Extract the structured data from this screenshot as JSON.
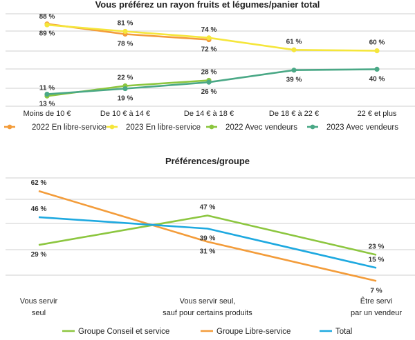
{
  "chart_data": [
    {
      "type": "line",
      "title": "Vous préférez un rayon fruits et légumes/panier total",
      "categories": [
        "Moins de 10 €",
        "De 10 € à 14 €",
        "De 14 € à 18 €",
        "De 18 € à 22 €",
        "22 € et plus"
      ],
      "ylim": [
        0,
        100
      ],
      "grid": true,
      "legend": "bottom",
      "series": [
        {
          "name": "2022 En libre-service",
          "color": "#f39c3a",
          "values": [
            89,
            78,
            72,
            null,
            null
          ],
          "labels": [
            "89 %",
            "78 %",
            "72 %",
            "",
            ""
          ],
          "label_pos": [
            "below",
            "below",
            "below",
            "",
            ""
          ]
        },
        {
          "name": "2023 En libre-service",
          "color": "#f5e63b",
          "values": [
            88,
            81,
            74,
            61,
            60
          ],
          "labels": [
            "88 %",
            "81 %",
            "74 %",
            "61 %",
            "60 %"
          ],
          "label_pos": [
            "above",
            "above",
            "above",
            "above",
            "above"
          ]
        },
        {
          "name": "2022 Avec vendeurs",
          "color": "#8cc63f",
          "values": [
            11,
            22,
            28,
            null,
            null
          ],
          "labels": [
            "11 %",
            "22 %",
            "28 %",
            "",
            ""
          ],
          "label_pos": [
            "above",
            "above",
            "above",
            "",
            ""
          ]
        },
        {
          "name": "2023 Avec vendeurs",
          "color": "#4aa886",
          "values": [
            13,
            19,
            26,
            39,
            40
          ],
          "labels": [
            "13 %",
            "19 %",
            "26 %",
            "39 %",
            "40 %"
          ],
          "label_pos": [
            "below",
            "below",
            "below",
            "below",
            "below"
          ]
        }
      ]
    },
    {
      "type": "line",
      "title": "Préférences/groupe",
      "categories": [
        [
          "Vous servir",
          "seul"
        ],
        [
          "Vous servir seul,",
          "sauf pour certains produits"
        ],
        [
          "Être servi",
          "par un vendeur"
        ]
      ],
      "ylim": [
        0,
        70
      ],
      "grid": true,
      "legend": "bottom",
      "series": [
        {
          "name": "Groupe Conseil et service",
          "color": "#8cc63f",
          "values": [
            29,
            47,
            23
          ],
          "labels": [
            "29 %",
            "47 %",
            "23 %"
          ],
          "label_pos": [
            "below",
            "above",
            "above"
          ]
        },
        {
          "name": "Groupe Libre-service",
          "color": "#f39c3a",
          "values": [
            62,
            31,
            7
          ],
          "labels": [
            "62 %",
            "31 %",
            "7 %"
          ],
          "label_pos": [
            "above",
            "below",
            "below"
          ]
        },
        {
          "name": "Total",
          "color": "#1ea9e0",
          "values": [
            46,
            39,
            15
          ],
          "labels": [
            "46 %",
            "39 %",
            "15 %"
          ],
          "label_pos": [
            "above",
            "below",
            "above"
          ]
        }
      ]
    }
  ]
}
